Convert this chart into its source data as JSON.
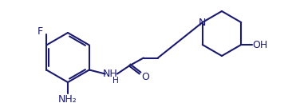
{
  "bg_color": "#ffffff",
  "line_color": "#1a1a6e",
  "text_color": "#1a1a6e",
  "lw": 1.5,
  "fs": 9.0,
  "labels": {
    "F": "F",
    "NH2": "NH₂",
    "NH": "NH",
    "H": "H",
    "O": "O",
    "N": "N",
    "OH": "OH"
  }
}
